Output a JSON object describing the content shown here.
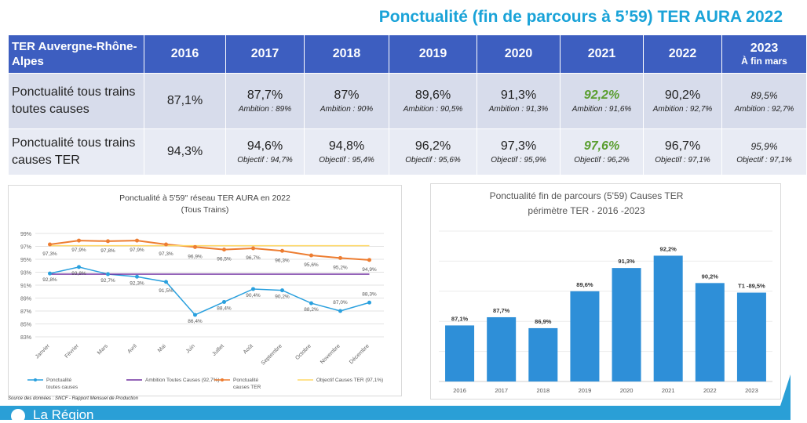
{
  "title": "Ponctualité (fin de parcours à 5’59) TER AURA 2022",
  "table": {
    "corner_label": "TER Auvergne-Rhône-Alpes",
    "years": [
      "2016",
      "2017",
      "2018",
      "2019",
      "2020",
      "2021",
      "2022",
      "2023"
    ],
    "year_2023_sub": "À fin mars",
    "rows": [
      {
        "label": "Ponctualité tous trains toutes causes",
        "cells": [
          {
            "value": "87,1%",
            "note": ""
          },
          {
            "value": "87,7%",
            "note": "Ambition : 89%"
          },
          {
            "value": "87%",
            "note": "Ambition : 90%"
          },
          {
            "value": "89,6%",
            "note": "Ambition : 90,5%"
          },
          {
            "value": "91,3%",
            "note": "Ambition : 91,3%"
          },
          {
            "value": "92,2%",
            "note": "Ambition : 91,6%"
          },
          {
            "value": "90,2%",
            "note": "Ambition : 92,7%"
          },
          {
            "value": "89,5%",
            "note": "Ambition : 92,7%"
          }
        ]
      },
      {
        "label": "Ponctualité tous trains causes TER",
        "cells": [
          {
            "value": "94,3%",
            "note": ""
          },
          {
            "value": "94,6%",
            "note": "Objectif : 94,7%"
          },
          {
            "value": "94,8%",
            "note": "Objectif : 95,4%"
          },
          {
            "value": "96,2%",
            "note": "Objectif : 95,6%"
          },
          {
            "value": "97,3%",
            "note": "Objectif : 95,9%"
          },
          {
            "value": "97,6%",
            "note": "Objectif : 96,2%"
          },
          {
            "value": "96,7%",
            "note": "Objectif : 97,1%"
          },
          {
            "value": "95,9%",
            "note": "Objectif : 97,1%"
          }
        ]
      }
    ],
    "highlight_color": "#5a9e2f",
    "header_color": "#3d5ec0"
  },
  "chart_data": [
    {
      "type": "line",
      "title": "Ponctualité à 5'59'' réseau TER AURA en 2022",
      "subtitle": "(Tous Trains)",
      "categories": [
        "Janvier",
        "Février",
        "Mars",
        "Avril",
        "Mai",
        "Juin",
        "Juillet",
        "Août",
        "Septembre",
        "Octobre",
        "Novembre",
        "Décembre"
      ],
      "ylim": [
        83,
        99
      ],
      "yticks": [
        "83%",
        "85%",
        "87%",
        "89%",
        "91%",
        "93%",
        "95%",
        "97%",
        "99%"
      ],
      "grid": true,
      "legend_position": "bottom",
      "series": [
        {
          "name": "Ponctualité toutes causes",
          "color": "#2aa0de",
          "values": [
            92.8,
            93.8,
            92.7,
            92.3,
            91.5,
            86.4,
            88.4,
            90.4,
            90.2,
            88.2,
            87.0,
            88.3
          ],
          "labels": [
            "92,8%",
            "93,8%",
            "92,7%",
            "92,3%",
            "91,5%",
            "86,4%",
            "88,4%",
            "90,4%",
            "90,2%",
            "88,2%",
            "87,0%",
            "88,3%"
          ]
        },
        {
          "name": "Ambition Toutes Causes (92,7%)",
          "color": "#7030a0",
          "values": [
            92.7,
            92.7,
            92.7,
            92.7,
            92.7,
            92.7,
            92.7,
            92.7,
            92.7,
            92.7,
            92.7,
            92.7
          ]
        },
        {
          "name": "Ponctualité causes TER",
          "color": "#ed7d31",
          "values": [
            97.3,
            97.9,
            97.8,
            97.9,
            97.3,
            96.9,
            96.5,
            96.7,
            96.3,
            95.6,
            95.2,
            94.9
          ],
          "labels": [
            "97,3%",
            "97,9%",
            "97,8%",
            "97,9%",
            "97,3%",
            "96,9%",
            "96,5%",
            "96,7%",
            "96,3%",
            "95,6%",
            "95,2%",
            "94,9%"
          ]
        },
        {
          "name": "Objectif Causes TER (97,1%)",
          "color": "#ffd966",
          "values": [
            97.1,
            97.1,
            97.1,
            97.1,
            97.1,
            97.1,
            97.1,
            97.1,
            97.1,
            97.1,
            97.1,
            97.1
          ]
        }
      ]
    },
    {
      "type": "bar",
      "title": "Ponctualité fin de parcours (5'59)  Causes TER",
      "subtitle": "périmètre TER - 2016 -2023",
      "categories": [
        "2016",
        "2017",
        "2018",
        "2019",
        "2020",
        "2021",
        "2022",
        "2023"
      ],
      "values": [
        87.1,
        87.7,
        86.9,
        89.6,
        91.3,
        92.2,
        90.2,
        89.5
      ],
      "labels": [
        "87,1%",
        "87,7%",
        "86,9%",
        "89,6%",
        "91,3%",
        "92,2%",
        "90,2%",
        "T1 -89,5%"
      ],
      "ylim": [
        83,
        94
      ],
      "grid": true,
      "color": "#2e8fd8"
    }
  ],
  "source": "Source des données : SNCF - Rapport Mensuel de Production",
  "footer_text": "La Région"
}
